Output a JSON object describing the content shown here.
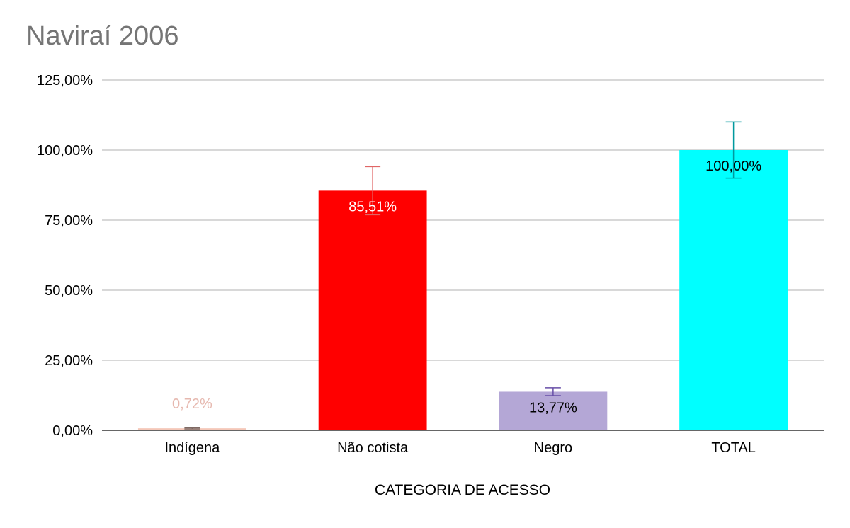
{
  "chart_data": {
    "type": "bar",
    "title": "Naviraí 2006",
    "xlabel": "CATEGORIA DE ACESSO",
    "ylabel": "",
    "ylim": [
      0,
      125
    ],
    "yticks": [
      0,
      25,
      50,
      75,
      100,
      125
    ],
    "ytick_labels": [
      "0,00%",
      "25,00%",
      "50,00%",
      "75,00%",
      "100,00%",
      "125,00%"
    ],
    "grid": true,
    "legend": "none",
    "categories": [
      "Indígena",
      "Não cotista",
      "Negro",
      "TOTAL"
    ],
    "values": [
      0.72,
      85.51,
      13.77,
      100.0
    ],
    "value_labels": [
      "0,72%",
      "85,51%",
      "13,77%",
      "100,00%"
    ],
    "error_bars": [
      0.2,
      8.6,
      1.4,
      10.0
    ],
    "colors": [
      "#f4c7b8",
      "#ff0000",
      "#b4a7d6",
      "#00ffff"
    ],
    "error_bar_colors": [
      "#7f6a64",
      "#e06666",
      "#674ea7",
      "#00999e"
    ],
    "label_colors": [
      "#e6b8af",
      "#ffffff",
      "#000000",
      "#000000"
    ]
  }
}
